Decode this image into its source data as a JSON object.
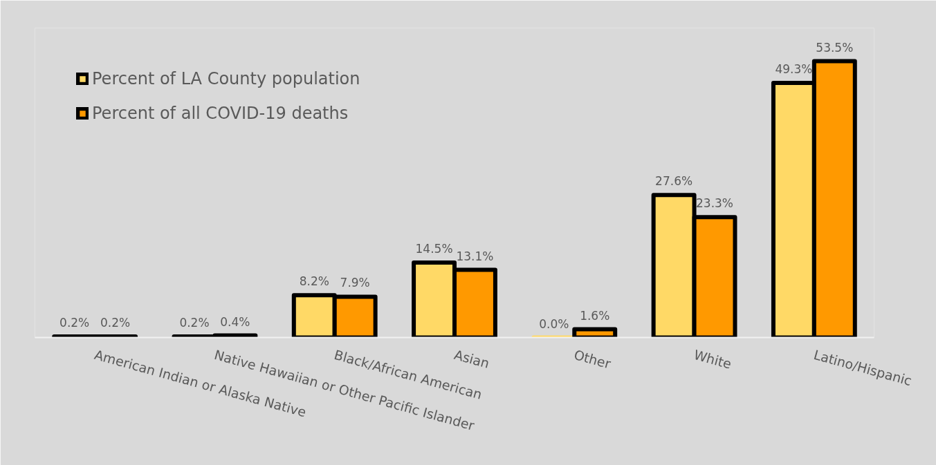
{
  "chart_data": {
    "type": "bar",
    "categories": [
      "American Indian or Alaska Native",
      "Native Hawaiian or Other Pacific Islander",
      "Black/African American",
      "Asian",
      "Other",
      "White",
      "Latino/Hispanic"
    ],
    "series": [
      {
        "name": "Percent of LA County population",
        "color": "#ffd966",
        "values": [
          0.2,
          0.2,
          8.2,
          14.5,
          0.0,
          27.6,
          49.3
        ],
        "value_labels": [
          "0.2%",
          "0.2%",
          "8.2%",
          "14.5%",
          "0.0%",
          "27.6%",
          "49.3%"
        ]
      },
      {
        "name": "Percent of all COVID-19 deaths",
        "color": "#ff9900",
        "values": [
          0.2,
          0.4,
          7.9,
          13.1,
          1.6,
          23.3,
          53.5
        ],
        "value_labels": [
          "0.2%",
          "0.4%",
          "7.9%",
          "13.1%",
          "1.6%",
          "23.3%",
          "53.5%"
        ]
      }
    ],
    "legend": "top left",
    "grid": false,
    "tick_labels": "x"
  }
}
